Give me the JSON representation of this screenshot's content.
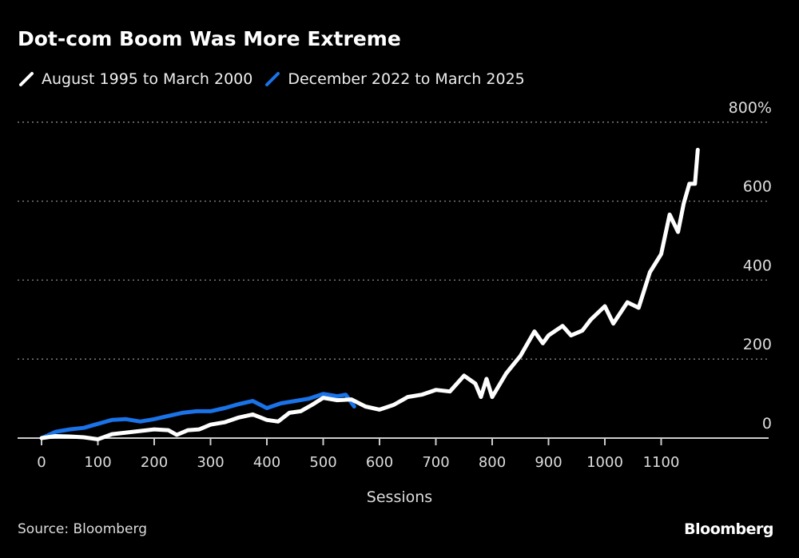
{
  "chart_data": {
    "type": "line",
    "title": "Dot-com Boom Was More Extreme",
    "xlabel": "Sessions",
    "ylabel": "",
    "y_unit_suffix": "%",
    "xlim": [
      -10,
      1210
    ],
    "ylim": [
      0,
      800
    ],
    "x_ticks": [
      0,
      100,
      200,
      300,
      400,
      500,
      600,
      700,
      800,
      900,
      1000,
      1100
    ],
    "y_ticks": [
      0,
      200,
      400,
      600,
      800
    ],
    "y_tick_labels": [
      "0",
      "200",
      "400",
      "600",
      "800%"
    ],
    "grid": "horizontal dotted",
    "legend_position": "top-left",
    "series": [
      {
        "name": "August 1995 to March 2000",
        "color": "#ffffff",
        "x": [
          0,
          25,
          50,
          75,
          100,
          125,
          150,
          175,
          200,
          225,
          240,
          260,
          280,
          300,
          325,
          350,
          375,
          400,
          420,
          440,
          460,
          480,
          500,
          525,
          550,
          575,
          600,
          625,
          650,
          675,
          700,
          725,
          750,
          770,
          780,
          790,
          800,
          825,
          850,
          875,
          890,
          900,
          925,
          940,
          960,
          975,
          1000,
          1015,
          1040,
          1060,
          1080,
          1100,
          1115,
          1130,
          1140,
          1150,
          1160,
          1165
        ],
        "y": [
          0,
          5,
          4,
          2,
          -3,
          10,
          14,
          18,
          22,
          20,
          8,
          20,
          22,
          34,
          40,
          52,
          60,
          46,
          42,
          64,
          68,
          84,
          102,
          96,
          98,
          80,
          72,
          84,
          104,
          110,
          122,
          118,
          158,
          138,
          104,
          150,
          104,
          164,
          208,
          270,
          240,
          260,
          284,
          260,
          272,
          300,
          334,
          290,
          344,
          330,
          420,
          466,
          566,
          522,
          594,
          644,
          644,
          730
        ]
      },
      {
        "name": "December 2022 to March 2025",
        "color": "#1a73e8",
        "x": [
          0,
          25,
          50,
          75,
          100,
          125,
          150,
          175,
          200,
          225,
          250,
          275,
          300,
          325,
          350,
          375,
          400,
          425,
          450,
          475,
          500,
          525,
          540,
          555
        ],
        "y": [
          0,
          16,
          22,
          26,
          36,
          46,
          48,
          42,
          48,
          56,
          64,
          68,
          68,
          76,
          86,
          94,
          76,
          88,
          94,
          100,
          112,
          106,
          110,
          80
        ]
      }
    ]
  },
  "footer": {
    "source": "Source: Bloomberg",
    "logo": "Bloomberg"
  }
}
